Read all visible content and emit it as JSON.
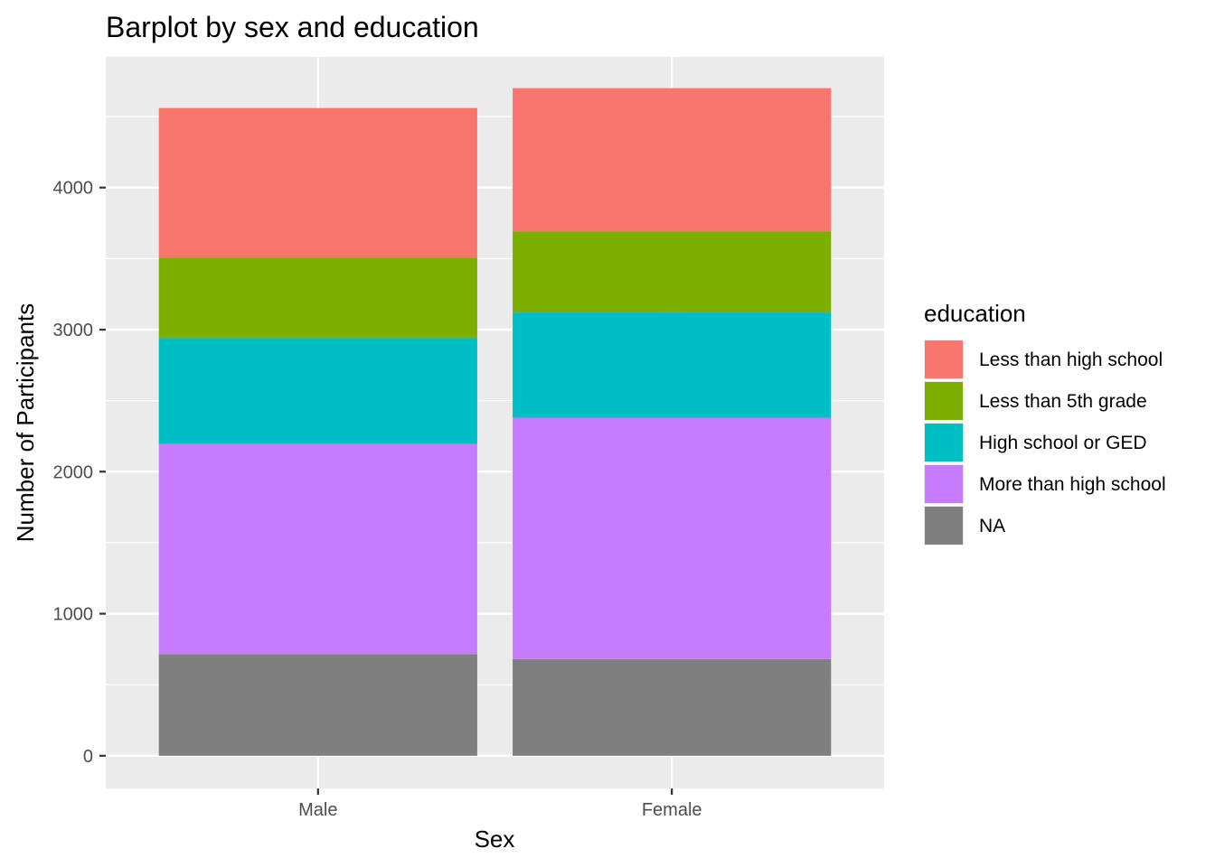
{
  "chart_data": {
    "type": "bar",
    "stacked": true,
    "title": "Barplot by sex and education",
    "xlabel": "Sex",
    "ylabel": "Number of Participants",
    "categories": [
      "Male",
      "Female"
    ],
    "series": [
      {
        "name": "NA",
        "color": "#7f7f7f",
        "values": [
          715,
          680
        ]
      },
      {
        "name": "More than high school",
        "color": "#c77cff",
        "values": [
          1480,
          1700
        ]
      },
      {
        "name": "High school or GED",
        "color": "#00bfc4",
        "values": [
          745,
          740
        ]
      },
      {
        "name": "Less than 5th grade",
        "color": "#7cae00",
        "values": [
          565,
          570
        ]
      },
      {
        "name": "Less than high school",
        "color": "#f8766d",
        "values": [
          1055,
          1010
        ]
      }
    ],
    "stack_order": [
      "NA",
      "More than high school",
      "High school or GED",
      "Less than 5th grade",
      "Less than high school"
    ],
    "legend": {
      "title": "education",
      "position": "right",
      "order": [
        "Less than high school",
        "Less than 5th grade",
        "High school or GED",
        "More than high school",
        "NA"
      ]
    },
    "yticks": [
      0,
      1000,
      2000,
      3000,
      4000
    ],
    "ylim": [
      -230,
      4920
    ],
    "grid": true,
    "panel_background": "#ebebeb"
  }
}
